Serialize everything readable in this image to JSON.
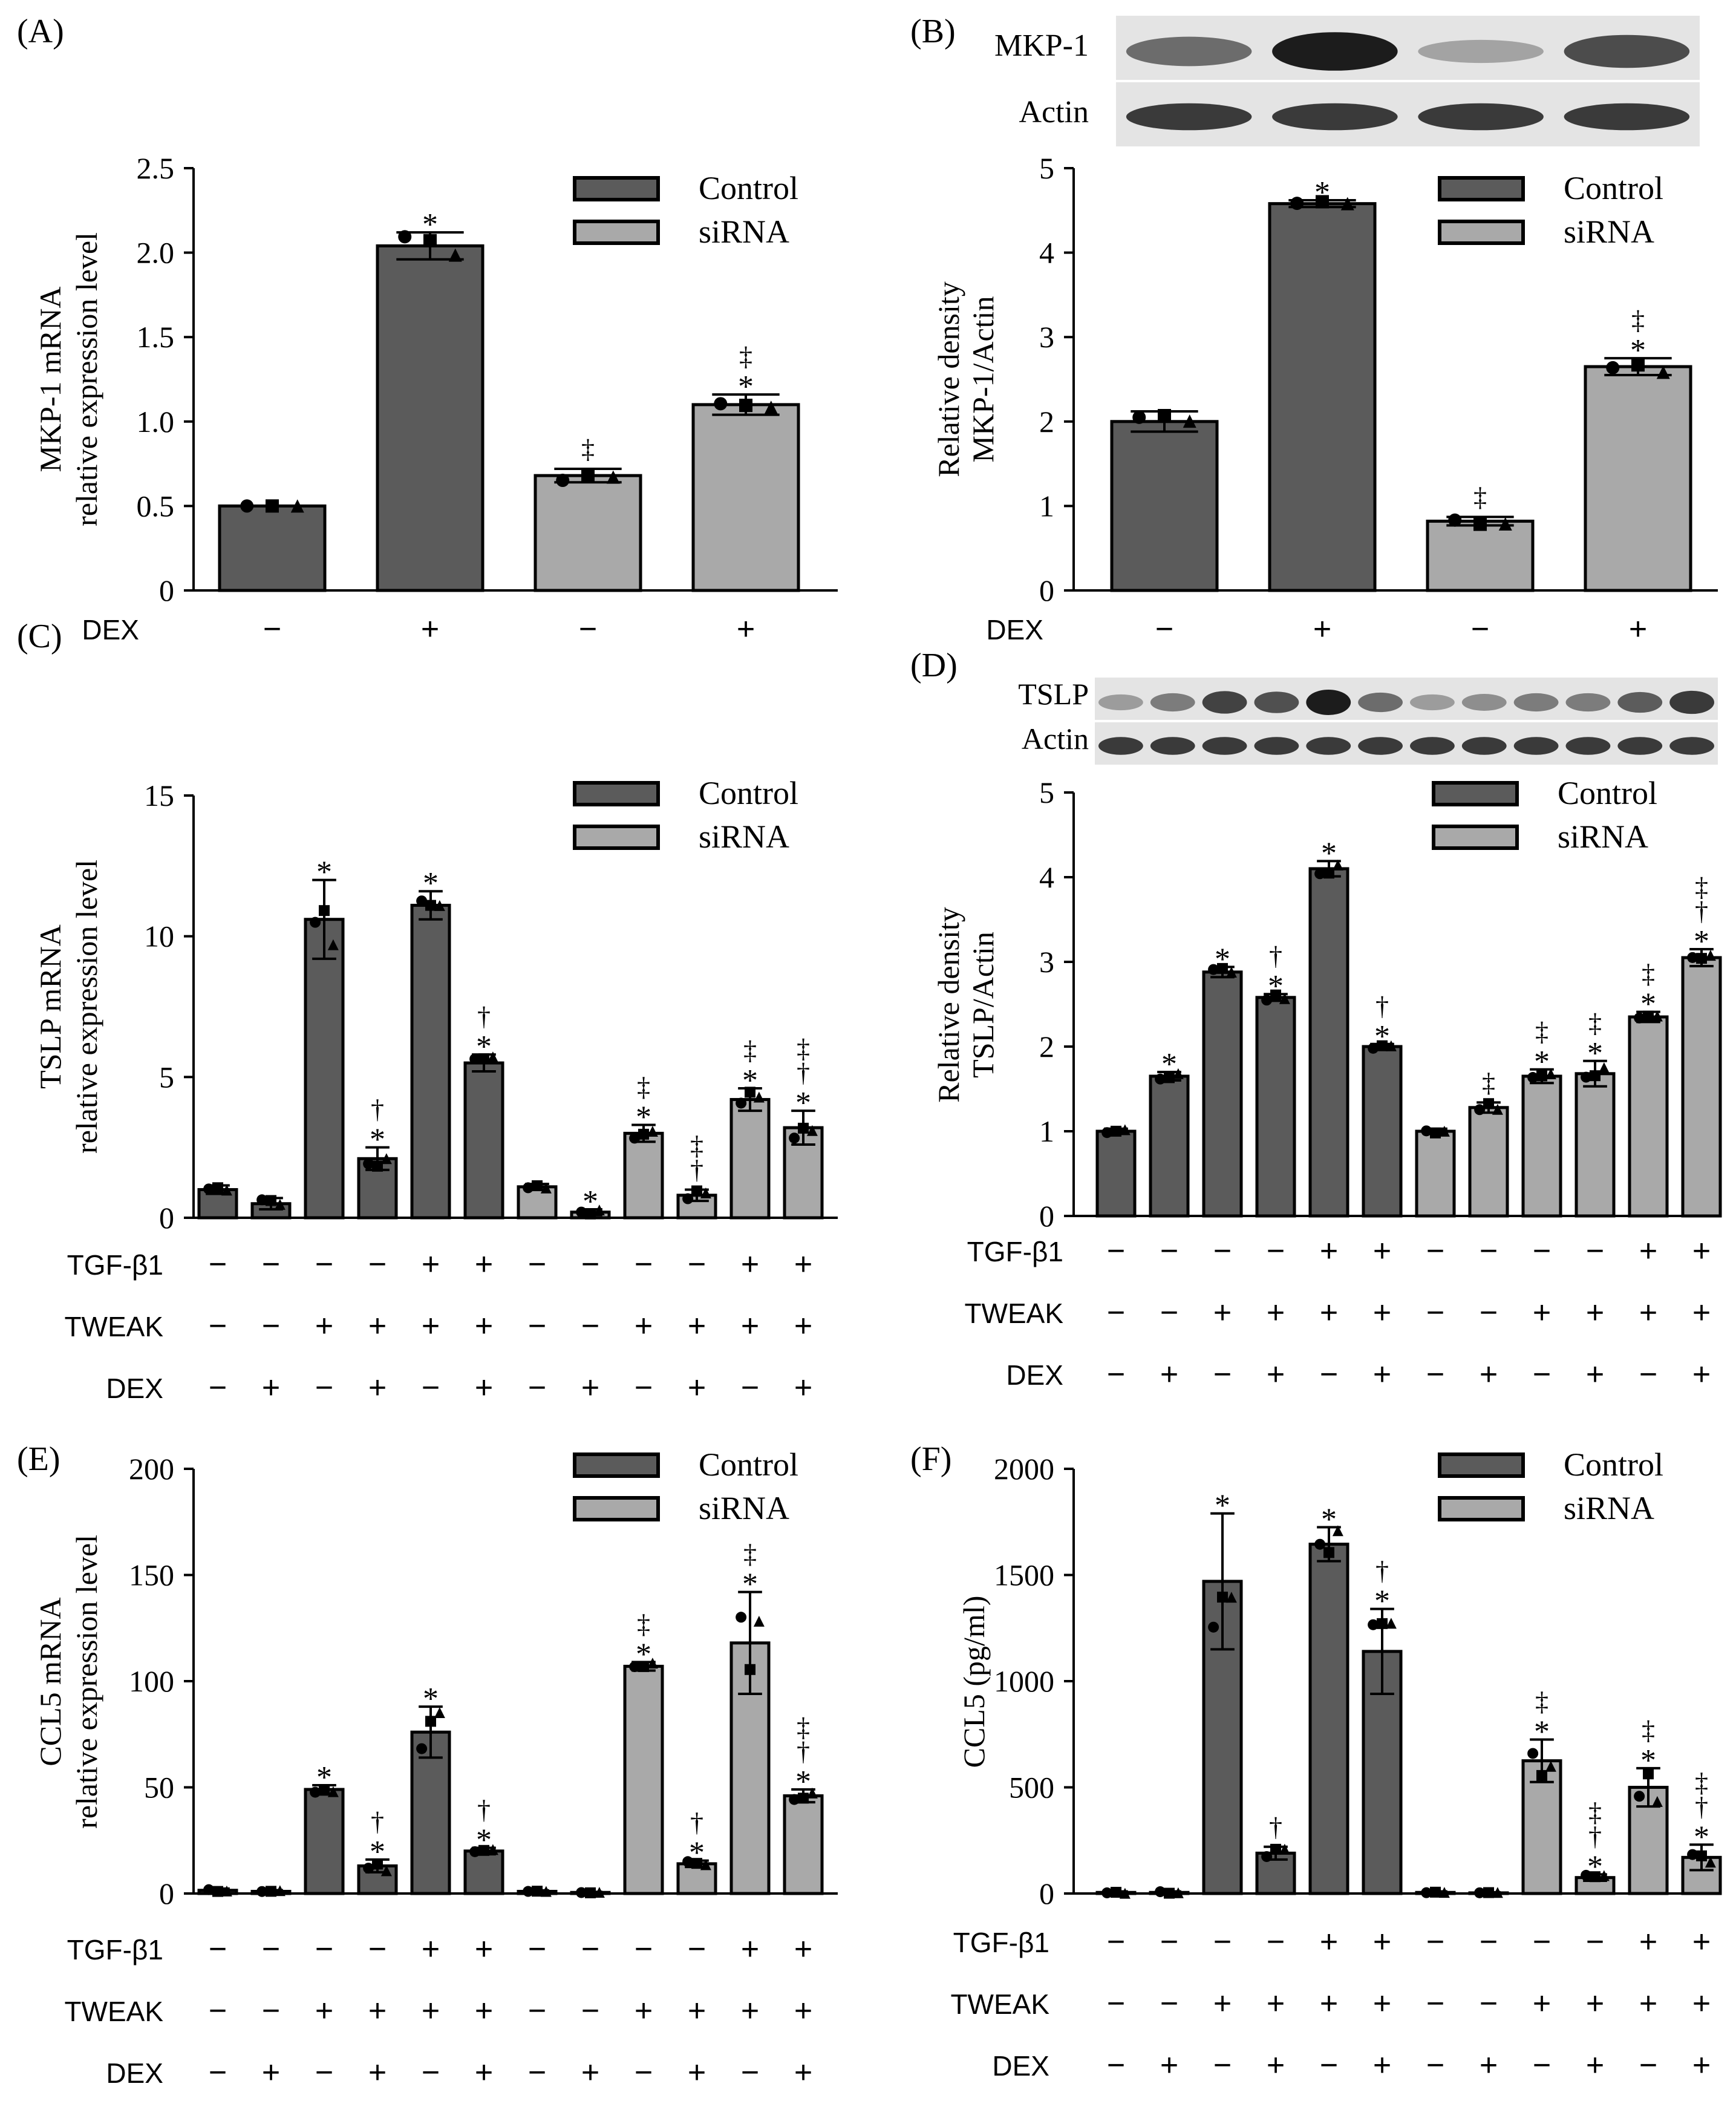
{
  "colors": {
    "control": "#5b5b5b",
    "sirna": "#a9a9a9",
    "axis": "#000000",
    "blot_bg": "#e4e4e4",
    "band": "#1c1c1c"
  },
  "legend": {
    "control": "Control",
    "sirna": "siRNA"
  },
  "markers": {
    "star": "*",
    "dagger": "†",
    "ddagger": "‡",
    "plus": "+",
    "minus": "−"
  },
  "chart_data": [
    {
      "id": "A",
      "panel_label": "(A)",
      "type": "bar",
      "ylabel": [
        "MKP-1 mRNA",
        "relative expression level"
      ],
      "ylim": [
        0,
        2.5
      ],
      "yticks": [
        "0",
        "0.5",
        "1.0",
        "1.5",
        "2.0",
        "2.5"
      ],
      "series_group": [
        "control",
        "control",
        "sirna",
        "sirna"
      ],
      "values": [
        0.5,
        2.04,
        0.68,
        1.1
      ],
      "errors": [
        0.0,
        0.08,
        0.04,
        0.06
      ],
      "annotations": [
        [],
        [
          "*"
        ],
        [
          "‡"
        ],
        [
          "*",
          "‡"
        ]
      ],
      "conditions": [
        {
          "label": "DEX",
          "signs": [
            "−",
            "+",
            "−",
            "+"
          ]
        }
      ]
    },
    {
      "id": "B",
      "panel_label": "(B)",
      "type": "bar",
      "ylabel": [
        "Relative density",
        "MKP-1/Actin"
      ],
      "ylim": [
        0,
        5
      ],
      "yticks": [
        "0",
        "1",
        "2",
        "3",
        "4",
        "5"
      ],
      "series_group": [
        "control",
        "control",
        "sirna",
        "sirna"
      ],
      "values": [
        2.0,
        4.58,
        0.82,
        2.65
      ],
      "errors": [
        0.12,
        0.04,
        0.05,
        0.1
      ],
      "annotations": [
        [],
        [
          "*"
        ],
        [
          "‡"
        ],
        [
          "*",
          "‡"
        ]
      ],
      "conditions": [
        {
          "label": "DEX",
          "signs": [
            "−",
            "+",
            "−",
            "+"
          ]
        }
      ],
      "blot": {
        "rows": [
          "MKP-1",
          "Actin"
        ],
        "lanes": 4
      }
    },
    {
      "id": "C",
      "panel_label": "(C)",
      "type": "bar",
      "ylabel": [
        "TSLP mRNA",
        "relative expression level"
      ],
      "ylim": [
        0,
        15
      ],
      "yticks": [
        "0",
        "5",
        "10",
        "15"
      ],
      "series_group": [
        "control",
        "control",
        "control",
        "control",
        "control",
        "control",
        "sirna",
        "sirna",
        "sirna",
        "sirna",
        "sirna",
        "sirna"
      ],
      "values": [
        1.0,
        0.5,
        10.6,
        2.1,
        11.1,
        5.5,
        1.1,
        0.2,
        3.0,
        0.8,
        4.2,
        3.2
      ],
      "errors": [
        0.15,
        0.2,
        1.4,
        0.4,
        0.5,
        0.3,
        0.1,
        0.1,
        0.3,
        0.2,
        0.4,
        0.6
      ],
      "annotations": [
        [],
        [],
        [
          "*"
        ],
        [
          "*",
          "†"
        ],
        [
          "*"
        ],
        [
          "*",
          "†"
        ],
        [],
        [
          "*"
        ],
        [
          "*",
          "‡"
        ],
        [
          "†",
          "‡"
        ],
        [
          "*",
          "‡"
        ],
        [
          "*",
          "†",
          "‡"
        ]
      ],
      "conditions": [
        {
          "label": "TGF-β1",
          "signs": [
            "−",
            "−",
            "−",
            "−",
            "+",
            "+",
            "−",
            "−",
            "−",
            "−",
            "+",
            "+"
          ]
        },
        {
          "label": "TWEAK",
          "signs": [
            "−",
            "−",
            "+",
            "+",
            "+",
            "+",
            "−",
            "−",
            "+",
            "+",
            "+",
            "+"
          ]
        },
        {
          "label": "DEX",
          "signs": [
            "−",
            "+",
            "−",
            "+",
            "−",
            "+",
            "−",
            "+",
            "−",
            "+",
            "−",
            "+"
          ]
        }
      ]
    },
    {
      "id": "D",
      "panel_label": "(D)",
      "type": "bar",
      "ylabel": [
        "Relative density",
        "TSLP/Actin"
      ],
      "ylim": [
        0,
        5
      ],
      "yticks": [
        "0",
        "1",
        "2",
        "3",
        "4",
        "5"
      ],
      "series_group": [
        "control",
        "control",
        "control",
        "control",
        "control",
        "control",
        "sirna",
        "sirna",
        "sirna",
        "sirna",
        "sirna",
        "sirna"
      ],
      "values": [
        1.0,
        1.65,
        2.88,
        2.58,
        4.1,
        2.0,
        1.0,
        1.28,
        1.65,
        1.68,
        2.35,
        3.05
      ],
      "errors": [
        0.03,
        0.05,
        0.06,
        0.04,
        0.09,
        0.03,
        0.03,
        0.06,
        0.08,
        0.15,
        0.06,
        0.1
      ],
      "annotations": [
        [],
        [
          "*"
        ],
        [
          "*"
        ],
        [
          "*",
          "†"
        ],
        [
          "*"
        ],
        [
          "*",
          "†"
        ],
        [],
        [
          "‡"
        ],
        [
          "*",
          "‡"
        ],
        [
          "*",
          "‡"
        ],
        [
          "*",
          "‡"
        ],
        [
          "*",
          "†",
          "‡"
        ]
      ],
      "conditions": [
        {
          "label": "TGF-β1",
          "signs": [
            "−",
            "−",
            "−",
            "−",
            "+",
            "+",
            "−",
            "−",
            "−",
            "−",
            "+",
            "+"
          ]
        },
        {
          "label": "TWEAK",
          "signs": [
            "−",
            "−",
            "+",
            "+",
            "+",
            "+",
            "−",
            "−",
            "+",
            "+",
            "+",
            "+"
          ]
        },
        {
          "label": "DEX",
          "signs": [
            "−",
            "+",
            "−",
            "+",
            "−",
            "+",
            "−",
            "+",
            "−",
            "+",
            "−",
            "+"
          ]
        }
      ],
      "blot": {
        "rows": [
          "TSLP",
          "Actin"
        ],
        "lanes": 12
      }
    },
    {
      "id": "E",
      "panel_label": "(E)",
      "type": "bar",
      "ylabel": [
        "CCL5 mRNA",
        "relative expression level"
      ],
      "ylim": [
        0,
        200
      ],
      "yticks": [
        "0",
        "50",
        "100",
        "150",
        "200"
      ],
      "series_group": [
        "control",
        "control",
        "control",
        "control",
        "control",
        "control",
        "sirna",
        "sirna",
        "sirna",
        "sirna",
        "sirna",
        "sirna"
      ],
      "values": [
        1.5,
        1.0,
        49,
        13,
        76,
        20,
        1.0,
        0.5,
        107,
        14,
        118,
        46
      ],
      "errors": [
        0.8,
        0.6,
        2,
        3,
        12,
        1.5,
        0.5,
        0.3,
        2,
        1.5,
        24,
        3
      ],
      "annotations": [
        [],
        [],
        [
          "*"
        ],
        [
          "*",
          "†"
        ],
        [
          "*"
        ],
        [
          "*",
          "†"
        ],
        [],
        [],
        [
          "*",
          "‡"
        ],
        [
          "*",
          "†"
        ],
        [
          "*",
          "‡"
        ],
        [
          "*",
          "†",
          "‡"
        ]
      ],
      "conditions": [
        {
          "label": "TGF-β1",
          "signs": [
            "−",
            "−",
            "−",
            "−",
            "+",
            "+",
            "−",
            "−",
            "−",
            "−",
            "+",
            "+"
          ]
        },
        {
          "label": "TWEAK",
          "signs": [
            "−",
            "−",
            "+",
            "+",
            "+",
            "+",
            "−",
            "−",
            "+",
            "+",
            "+",
            "+"
          ]
        },
        {
          "label": "DEX",
          "signs": [
            "−",
            "+",
            "−",
            "+",
            "−",
            "+",
            "−",
            "+",
            "−",
            "+",
            "−",
            "+"
          ]
        }
      ]
    },
    {
      "id": "F",
      "panel_label": "(F)",
      "type": "bar",
      "ylabel": [
        "CCL5 (pg/ml)"
      ],
      "ylim": [
        0,
        2000
      ],
      "yticks": [
        "0",
        "500",
        "1000",
        "1500",
        "2000"
      ],
      "series_group": [
        "control",
        "control",
        "control",
        "control",
        "control",
        "control",
        "sirna",
        "sirna",
        "sirna",
        "sirna",
        "sirna",
        "sirna"
      ],
      "values": [
        5,
        5,
        1470,
        190,
        1645,
        1140,
        5,
        3,
        625,
        75,
        500,
        170
      ],
      "errors": [
        5,
        5,
        320,
        30,
        80,
        200,
        5,
        3,
        100,
        15,
        90,
        60
      ],
      "annotations": [
        [],
        [],
        [
          "*"
        ],
        [
          "†"
        ],
        [
          "*"
        ],
        [
          "*",
          "†"
        ],
        [],
        [],
        [
          "*",
          "‡"
        ],
        [
          "*",
          "†",
          "‡"
        ],
        [
          "*",
          "‡"
        ],
        [
          "*",
          "†",
          "‡"
        ]
      ],
      "conditions": [
        {
          "label": "TGF-β1",
          "signs": [
            "−",
            "−",
            "−",
            "−",
            "+",
            "+",
            "−",
            "−",
            "−",
            "−",
            "+",
            "+"
          ]
        },
        {
          "label": "TWEAK",
          "signs": [
            "−",
            "−",
            "+",
            "+",
            "+",
            "+",
            "−",
            "−",
            "+",
            "+",
            "+",
            "+"
          ]
        },
        {
          "label": "DEX",
          "signs": [
            "−",
            "+",
            "−",
            "+",
            "−",
            "+",
            "−",
            "+",
            "−",
            "+",
            "−",
            "+"
          ]
        }
      ]
    }
  ]
}
